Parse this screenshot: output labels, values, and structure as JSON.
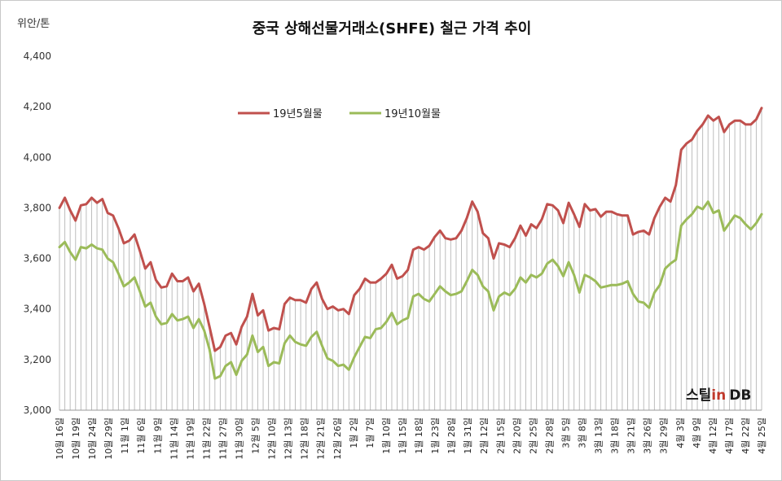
{
  "chart_data": {
    "type": "line",
    "title": "중국 상해선물거래소(SHFE) 철근 가격 추이",
    "ylabel": "위안/톤",
    "ylim": [
      3000,
      4400
    ],
    "yticks": [
      "3,000",
      "3,200",
      "3,400",
      "3,600",
      "3,800",
      "4,000",
      "4,200",
      "4,400"
    ],
    "grid": "vertical drop lines",
    "legend_position": "top-left",
    "x_labels": [
      "10월 16일",
      "10월 19일",
      "10월 24일",
      "10월 29일",
      "11월 1일",
      "11월 6일",
      "11월 9일",
      "11월 14일",
      "11월 19일",
      "11월 22일",
      "11월 27일",
      "11월 30일",
      "12월 5일",
      "12월 10일",
      "12월 13일",
      "12월 18일",
      "12월 21일",
      "12월 26일",
      "1월 2일",
      "1월 7일",
      "1월 10일",
      "1월 15일",
      "1월 18일",
      "1월 23일",
      "1월 28일",
      "1월 31일",
      "2월 12일",
      "2월 15일",
      "2월 20일",
      "2월 25일",
      "2월 28일",
      "3월 5일",
      "3월 8일",
      "3월 13일",
      "3월 18일",
      "3월 21일",
      "3월 26일",
      "3월 29일",
      "4월 3일",
      "4월 9일",
      "4월 12일",
      "4월 17일",
      "4월 22일",
      "4월 25일"
    ],
    "series": [
      {
        "name": "19년5월물",
        "color": "#c0504d",
        "values": [
          3800,
          3840,
          3790,
          3750,
          3810,
          3815,
          3840,
          3820,
          3835,
          3780,
          3770,
          3720,
          3660,
          3670,
          3695,
          3630,
          3560,
          3585,
          3515,
          3485,
          3490,
          3540,
          3510,
          3510,
          3525,
          3470,
          3500,
          3420,
          3330,
          3235,
          3250,
          3295,
          3305,
          3260,
          3330,
          3370,
          3460,
          3375,
          3395,
          3315,
          3325,
          3320,
          3420,
          3445,
          3435,
          3435,
          3425,
          3480,
          3505,
          3440,
          3400,
          3410,
          3395,
          3400,
          3380,
          3455,
          3480,
          3520,
          3505,
          3505,
          3520,
          3540,
          3575,
          3520,
          3530,
          3555,
          3635,
          3645,
          3635,
          3650,
          3685,
          3710,
          3680,
          3675,
          3680,
          3710,
          3760,
          3825,
          3785,
          3700,
          3680,
          3600,
          3660,
          3655,
          3645,
          3680,
          3730,
          3690,
          3735,
          3720,
          3755,
          3815,
          3810,
          3790,
          3740,
          3820,
          3775,
          3725,
          3815,
          3790,
          3795,
          3765,
          3785,
          3785,
          3775,
          3770,
          3770,
          3695,
          3705,
          3710,
          3695,
          3760,
          3805,
          3840,
          3825,
          3890,
          4030,
          4055,
          4070,
          4105,
          4130,
          4165,
          4145,
          4160,
          4100,
          4130,
          4145,
          4145,
          4130,
          4130,
          4150,
          4195
        ]
      },
      {
        "name": "19년10월물",
        "color": "#9bbb59",
        "values": [
          3645,
          3665,
          3625,
          3595,
          3645,
          3640,
          3655,
          3640,
          3635,
          3600,
          3585,
          3540,
          3490,
          3505,
          3525,
          3470,
          3410,
          3425,
          3370,
          3340,
          3345,
          3380,
          3355,
          3360,
          3370,
          3325,
          3360,
          3315,
          3240,
          3125,
          3135,
          3175,
          3190,
          3140,
          3195,
          3220,
          3295,
          3230,
          3250,
          3175,
          3190,
          3185,
          3265,
          3295,
          3270,
          3260,
          3255,
          3290,
          3310,
          3255,
          3205,
          3195,
          3175,
          3180,
          3160,
          3210,
          3250,
          3290,
          3285,
          3320,
          3325,
          3350,
          3385,
          3340,
          3355,
          3365,
          3450,
          3460,
          3440,
          3430,
          3460,
          3490,
          3470,
          3455,
          3460,
          3470,
          3510,
          3555,
          3535,
          3490,
          3470,
          3395,
          3450,
          3465,
          3455,
          3480,
          3525,
          3505,
          3535,
          3525,
          3540,
          3580,
          3595,
          3570,
          3530,
          3585,
          3535,
          3465,
          3535,
          3525,
          3510,
          3485,
          3490,
          3495,
          3495,
          3500,
          3510,
          3460,
          3430,
          3425,
          3405,
          3465,
          3495,
          3560,
          3580,
          3595,
          3730,
          3755,
          3775,
          3805,
          3795,
          3825,
          3780,
          3790,
          3710,
          3740,
          3770,
          3760,
          3735,
          3715,
          3740,
          3775
        ]
      }
    ]
  },
  "logo": {
    "part1": "스틸",
    "part2": "in",
    "part3": "DB"
  }
}
